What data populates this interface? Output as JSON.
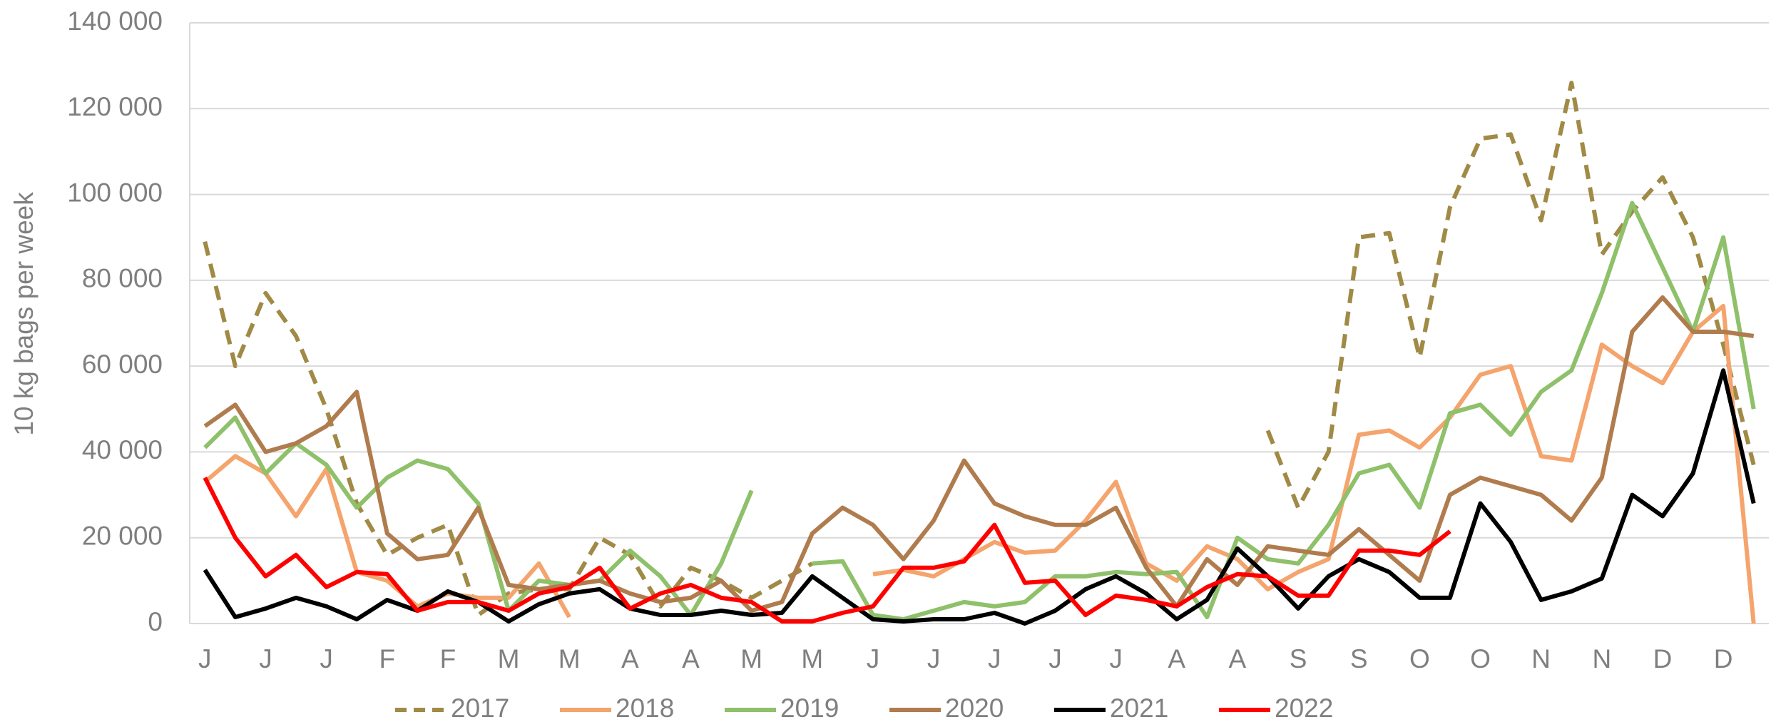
{
  "chart_data": {
    "type": "line",
    "y_label": "10 kg bags per week",
    "categories": [
      "J",
      null,
      "J",
      null,
      "J",
      null,
      "F",
      null,
      "F",
      null,
      "M",
      null,
      "M",
      null,
      "A",
      null,
      "A",
      null,
      "M",
      null,
      "M",
      null,
      "J",
      null,
      "J",
      null,
      "J",
      null,
      "J",
      null,
      "J",
      null,
      "A",
      null,
      "A",
      null,
      "S",
      null,
      "S",
      null,
      "O",
      null,
      "O",
      null,
      "N",
      null,
      "N",
      null,
      "D",
      null,
      "D",
      null
    ],
    "ylim": [
      0,
      140000
    ],
    "yticks": [
      {
        "value": 0,
        "label": "0"
      },
      {
        "value": 20000,
        "label": "20 000"
      },
      {
        "value": 40000,
        "label": "40 000"
      },
      {
        "value": 60000,
        "label": "60 000"
      },
      {
        "value": 80000,
        "label": "80 000"
      },
      {
        "value": 100000,
        "label": "100 000"
      },
      {
        "value": 120000,
        "label": "120 000"
      },
      {
        "value": 140000,
        "label": "140 000"
      }
    ],
    "grid": true,
    "legend": "bottom",
    "series": [
      {
        "name": "2017",
        "color": "#a08a45",
        "dashed": true,
        "values": [
          89000,
          60000,
          77000,
          67000,
          50000,
          28000,
          16000,
          20000,
          23000,
          2000,
          7000,
          8000,
          8000,
          20000,
          16000,
          4000,
          13000,
          10000,
          6000,
          10000,
          14000,
          null,
          null,
          null,
          null,
          null,
          null,
          null,
          null,
          null,
          null,
          null,
          null,
          null,
          null,
          45000,
          27000,
          40000,
          90000,
          91000,
          62000,
          97000,
          113000,
          114000,
          94000,
          126000,
          86000,
          96000,
          104000,
          90000,
          65000,
          37000
        ]
      },
      {
        "name": "2018",
        "color": "#f4a46c",
        "values": [
          33000,
          39000,
          35000,
          25000,
          36000,
          12000,
          10000,
          4000,
          7000,
          6000,
          6000,
          14000,
          1500,
          null,
          null,
          null,
          null,
          null,
          null,
          null,
          null,
          null,
          11500,
          12500,
          11000,
          15000,
          19000,
          16500,
          17000,
          24000,
          33000,
          14000,
          10000,
          18000,
          15000,
          8000,
          12000,
          15000,
          44000,
          45000,
          41000,
          48000,
          58000,
          60000,
          39000,
          38000,
          65000,
          60000,
          56000,
          68000,
          74000,
          0
        ]
      },
      {
        "name": "2019",
        "color": "#8fc06a",
        "values": [
          41000,
          48000,
          35000,
          42000,
          37000,
          27000,
          34000,
          38000,
          36000,
          28000,
          3000,
          10000,
          9000,
          10000,
          17000,
          11000,
          2000,
          14000,
          31000,
          null,
          14000,
          14500,
          2000,
          1000,
          3000,
          5000,
          4000,
          5000,
          11000,
          11000,
          12000,
          11500,
          12000,
          1500,
          20000,
          15000,
          14000,
          23000,
          35000,
          37000,
          27000,
          49000,
          51000,
          44000,
          54000,
          59000,
          77000,
          98000,
          83000,
          68000,
          90000,
          50000
        ]
      },
      {
        "name": "2020",
        "color": "#b07c4e",
        "values": [
          46000,
          51000,
          40000,
          42000,
          46000,
          54000,
          21000,
          15000,
          16000,
          27000,
          9000,
          8000,
          9000,
          10000,
          7000,
          5000,
          6000,
          10000,
          3000,
          5000,
          21000,
          27000,
          23000,
          15000,
          24000,
          38000,
          28000,
          25000,
          23000,
          23000,
          27000,
          13000,
          4000,
          15000,
          9000,
          18000,
          17000,
          16000,
          22000,
          16000,
          10000,
          30000,
          34000,
          32000,
          30000,
          24000,
          34000,
          68000,
          76000,
          68000,
          68000,
          67000
        ]
      },
      {
        "name": "2021",
        "color": "#000000",
        "values": [
          12500,
          1500,
          3500,
          6000,
          4000,
          1000,
          5500,
          3000,
          7500,
          5000,
          500,
          4500,
          7000,
          8000,
          3500,
          2000,
          2000,
          3000,
          2000,
          2500,
          11000,
          6000,
          1000,
          500,
          1000,
          1000,
          2500,
          0,
          3000,
          8000,
          11000,
          7000,
          1000,
          5500,
          17500,
          11000,
          3500,
          11000,
          15000,
          12000,
          6000,
          6000,
          28000,
          19000,
          5500,
          7500,
          10500,
          30000,
          25000,
          35000,
          59000,
          28000
        ]
      },
      {
        "name": "2022",
        "color": "#ff0000",
        "values": [
          34000,
          20000,
          11000,
          16000,
          8500,
          12000,
          11500,
          3000,
          5000,
          5000,
          3000,
          7000,
          8500,
          13000,
          3500,
          7000,
          9000,
          6000,
          5000,
          500,
          500,
          2500,
          4000,
          13000,
          13000,
          14500,
          23000,
          9500,
          10000,
          2000,
          6500,
          5500,
          4000,
          8500,
          11500,
          11000,
          6500,
          6500,
          17000,
          17000,
          16000,
          21500,
          null,
          null,
          null,
          null,
          null,
          null,
          null,
          null,
          null,
          null
        ]
      }
    ]
  }
}
